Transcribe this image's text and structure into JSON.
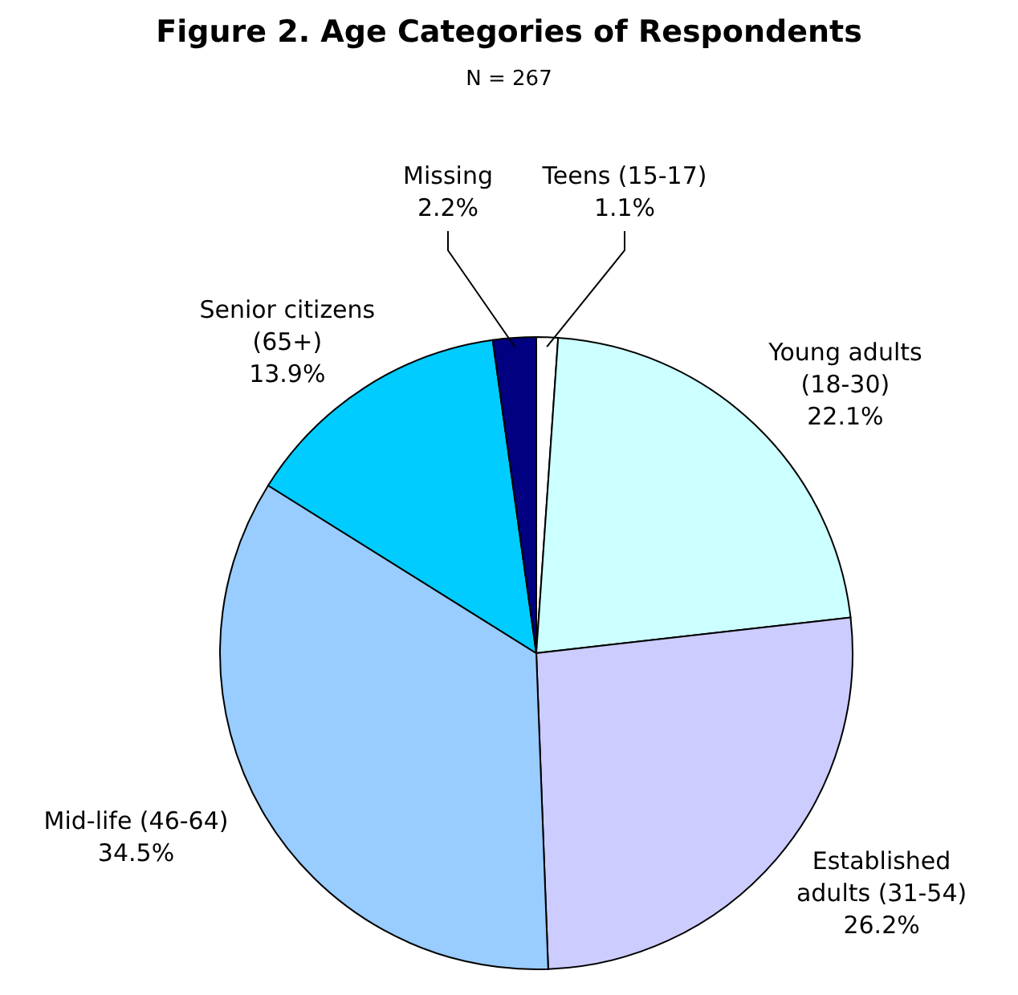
{
  "chart_data": {
    "type": "pie",
    "title": "Figure 2. Age Categories of Respondents",
    "subtitle": "N = 267",
    "categories": [
      "Teens (15-17)",
      "Young adults (18-30)",
      "Established adults (31-54)",
      "Mid-life (46-64)",
      "Senior citizens (65+)",
      "Missing"
    ],
    "values": [
      1.1,
      22.1,
      26.2,
      34.5,
      13.9,
      2.2
    ],
    "colors": [
      "#ffffff",
      "#ccffff",
      "#ccccff",
      "#99ccff",
      "#00ccff",
      "#000080"
    ],
    "value_labels": [
      "1.1%",
      "22.1%",
      "26.2%",
      "34.5%",
      "13.9%",
      "2.2%"
    ]
  }
}
